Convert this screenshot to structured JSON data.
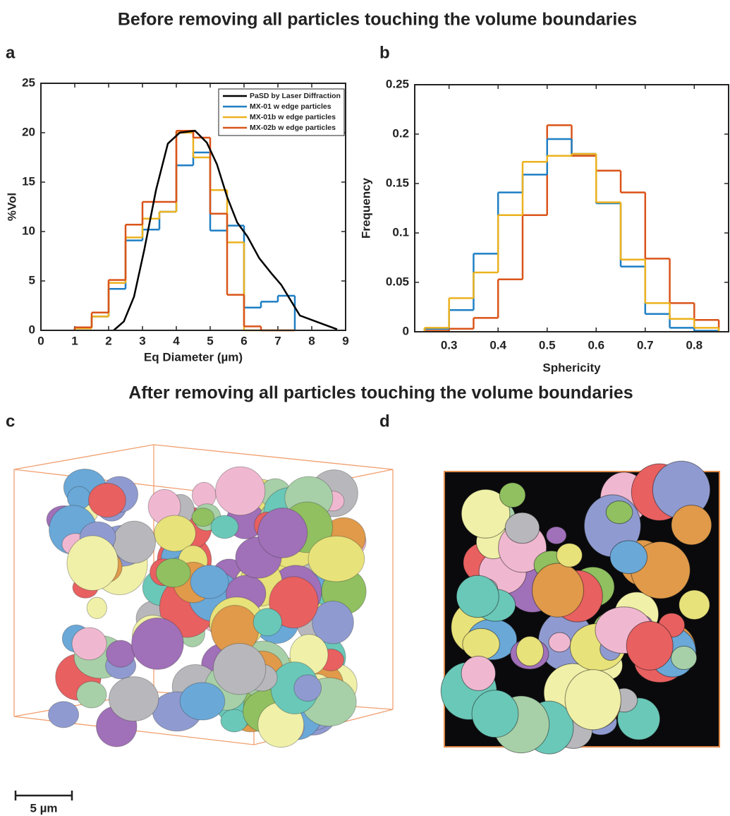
{
  "header": {
    "title": "Before removing all particles touching the volume boundaries"
  },
  "panel_labels": [
    "a",
    "b",
    "c",
    "d"
  ],
  "chart_data": [
    {
      "type": "histogram",
      "x_label": "Eq Diameter (µm)",
      "y_label": "%Vol",
      "bins": [
        1,
        1.5,
        2,
        2.5,
        3,
        3.5,
        4,
        4.5,
        5,
        5.5,
        6,
        6.5,
        7,
        7.5
      ],
      "series": [
        {
          "name": "MX-01 w edge particles",
          "color": "#1f7fc4",
          "values": [
            0.3,
            1.4,
            4.2,
            9.1,
            10.2,
            12.0,
            16.7,
            18.0,
            10.1,
            10.6,
            2.3,
            2.9,
            3.5
          ]
        },
        {
          "name": "MX-01b w edge particles",
          "color": "#ecb21e",
          "values": [
            0.2,
            1.4,
            4.8,
            9.4,
            11.3,
            12.0,
            20.0,
            17.5,
            14.2,
            8.9,
            0,
            0,
            0
          ]
        },
        {
          "name": "MX-02b w edge particles",
          "color": "#d9541a",
          "values": [
            0.3,
            1.8,
            5.1,
            10.7,
            13.0,
            13.0,
            20.2,
            19.5,
            11.8,
            3.6,
            0.4,
            0,
            0
          ]
        }
      ],
      "reference": {
        "name": "PaSD by Laser Diffraction",
        "color": "#000000",
        "x": [
          2.15,
          2.45,
          2.75,
          3.05,
          3.4,
          3.75,
          4.1,
          4.55,
          4.9,
          5.2,
          5.5,
          5.8,
          6.1,
          6.45,
          6.8,
          7.1,
          7.65,
          8.2,
          8.75
        ],
        "values": [
          0,
          0.9,
          3.4,
          8.1,
          14.2,
          18.9,
          20.0,
          20.2,
          19.0,
          16.8,
          13.5,
          10.9,
          9.5,
          7.3,
          5.8,
          4.6,
          1.5,
          0.8,
          0.1
        ]
      },
      "xlim": [
        0,
        9
      ],
      "xticks": [
        0,
        1,
        2,
        3,
        4,
        5,
        6,
        7,
        8,
        9
      ],
      "ylim": [
        0,
        25
      ],
      "yticks": [
        0,
        5,
        10,
        15,
        20,
        25
      ],
      "legend": "upper right"
    },
    {
      "type": "histogram",
      "x_label": "Sphericity",
      "y_label": "Frequency",
      "bins": [
        0.25,
        0.3,
        0.35,
        0.4,
        0.45,
        0.5,
        0.55,
        0.6,
        0.65,
        0.7,
        0.75,
        0.8,
        0.85
      ],
      "series": [
        {
          "color": "#d9541a",
          "values": [
            0.001,
            0.003,
            0.014,
            0.053,
            0.118,
            0.209,
            0.178,
            0.163,
            0.141,
            0.074,
            0.029,
            0.012
          ]
        },
        {
          "color": "#1f7fc4",
          "values": [
            0.003,
            0.022,
            0.079,
            0.141,
            0.159,
            0.195,
            0.18,
            0.13,
            0.066,
            0.018,
            0.004,
            0.001
          ]
        },
        {
          "color": "#ecb21e",
          "values": [
            0.004,
            0.034,
            0.06,
            0.118,
            0.172,
            0.178,
            0.18,
            0.131,
            0.073,
            0.029,
            0.013,
            0.004
          ]
        }
      ],
      "xlim": [
        0.23,
        0.87
      ],
      "xticks": [
        0.3,
        0.4,
        0.5,
        0.6,
        0.7,
        0.8
      ],
      "ylim": [
        0,
        0.25
      ],
      "yticks": [
        0,
        0.05,
        0.1,
        0.15,
        0.2,
        0.25
      ]
    }
  ],
  "section": {
    "title": "After removing all particles touching the volume boundaries"
  },
  "scale_bar": {
    "label": "5 µm"
  }
}
